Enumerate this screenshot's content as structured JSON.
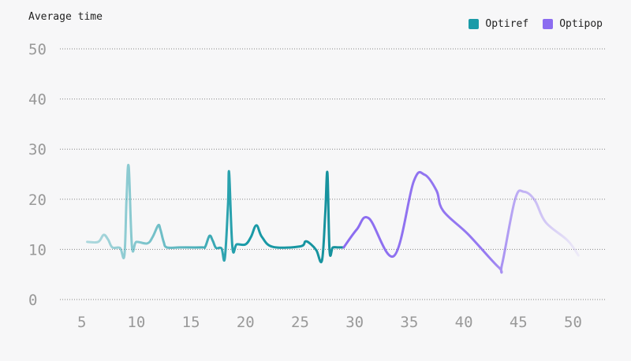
{
  "chart": {
    "title": "Average time",
    "legend": [
      {
        "label": "Optiref",
        "color": "#1a9ba8"
      },
      {
        "label": "Optipop",
        "color": "#8b6cf0"
      }
    ]
  },
  "chart_data": {
    "type": "line",
    "title": "Average time",
    "xlabel": "",
    "ylabel": "",
    "xlim": [
      3,
      53
    ],
    "ylim": [
      0,
      50
    ],
    "x_ticks": [
      5,
      10,
      15,
      20,
      25,
      30,
      35,
      40,
      45,
      50
    ],
    "y_ticks": [
      0,
      10,
      20,
      30,
      40,
      50
    ],
    "grid": "horizontal-dotted",
    "legend_position": "top-right",
    "series": [
      {
        "name": "Optiref",
        "color": "#1a9ba8",
        "x": [
          5.5,
          6.5,
          7.0,
          7.4,
          7.8,
          8.5,
          8.9,
          9.1,
          9.3,
          9.6,
          10.0,
          11.0,
          11.5,
          12.0,
          12.2,
          12.5,
          12.8,
          14.0,
          16.0,
          16.3,
          16.7,
          17.0,
          17.3,
          17.8,
          18.1,
          18.4,
          18.5,
          18.8,
          19.2,
          20.0,
          20.5,
          21.0,
          21.5,
          22.5,
          25.0,
          25.5,
          26.0,
          26.5,
          27.0,
          27.3,
          27.5,
          27.7,
          28.0,
          28.5,
          29.0
        ],
        "y": [
          11.5,
          11.5,
          12.9,
          12.0,
          10.4,
          10.3,
          8.8,
          20.0,
          26.5,
          10.6,
          11.5,
          11.2,
          12.5,
          14.8,
          14.0,
          11.5,
          10.4,
          10.4,
          10.4,
          10.5,
          12.7,
          11.7,
          10.3,
          10.2,
          8.2,
          19.0,
          25.3,
          10.4,
          11.0,
          11.0,
          12.5,
          14.8,
          12.5,
          10.5,
          10.6,
          11.6,
          11.0,
          9.8,
          7.8,
          17.0,
          25.3,
          9.8,
          10.4,
          10.4,
          10.4
        ]
      },
      {
        "name": "Optipop",
        "color": "#8b6cf0",
        "x": [
          29.0,
          30.2,
          31.3,
          33.6,
          35.4,
          36.4,
          37.5,
          38.1,
          40.4,
          43.2,
          43.5,
          44.7,
          45.5,
          46.5,
          47.5,
          49.5,
          50.5
        ],
        "y": [
          10.4,
          14.0,
          16.2,
          8.7,
          23.5,
          24.9,
          21.7,
          17.7,
          13.0,
          6.4,
          7.0,
          20.0,
          21.5,
          19.8,
          15.4,
          11.8,
          8.8
        ]
      }
    ]
  }
}
